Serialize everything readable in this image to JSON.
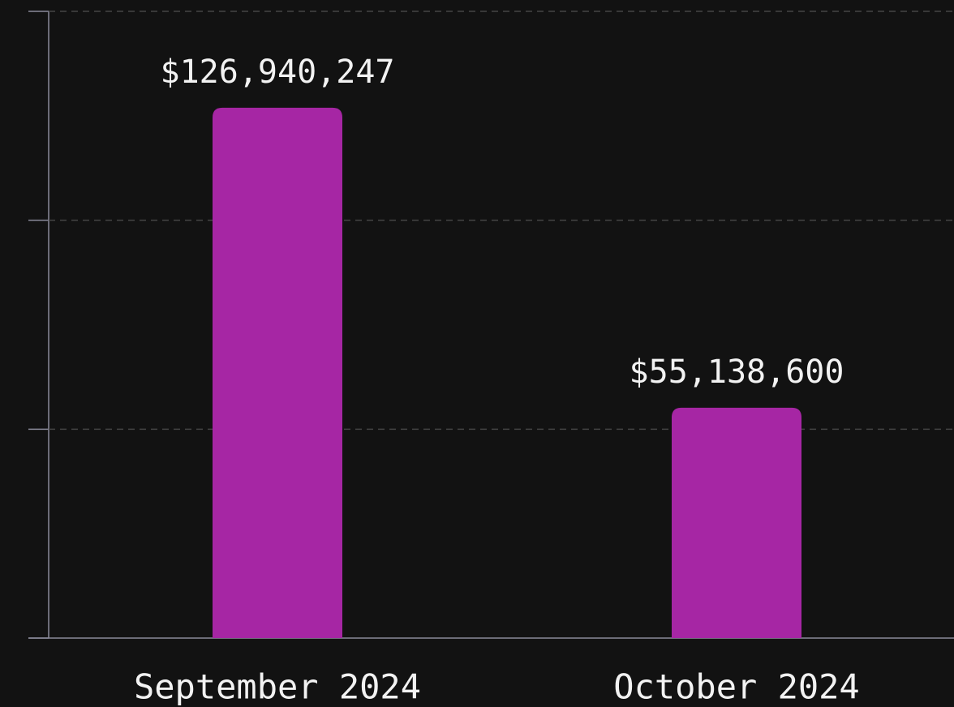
{
  "chart_data": {
    "type": "bar",
    "categories": [
      "September 2024",
      "October 2024"
    ],
    "values": [
      126940247,
      55138600
    ],
    "value_labels": [
      "$126,940,247",
      "$55,138,600"
    ],
    "color": "#a626a4",
    "ylim": [
      0,
      150000000
    ],
    "yticks": [
      0,
      50000000,
      100000000,
      150000000
    ],
    "grid": true
  }
}
